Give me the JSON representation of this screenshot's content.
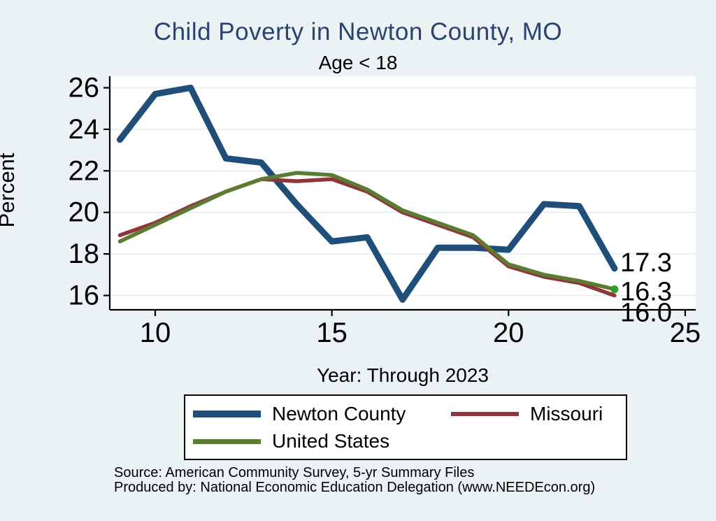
{
  "chart_data": {
    "type": "line",
    "title": "Child Poverty in Newton County, MO",
    "subtitle": "Age < 18",
    "xlabel": "Year: Through 2023",
    "ylabel": "Percent",
    "x": [
      2009,
      2010,
      2011,
      2012,
      2013,
      2014,
      2015,
      2016,
      2017,
      2018,
      2019,
      2020,
      2021,
      2022,
      2023
    ],
    "xtick_labels": [
      "10",
      "15",
      "20",
      "25"
    ],
    "xticks": [
      2010,
      2015,
      2020,
      2025
    ],
    "yticks": [
      16,
      18,
      20,
      22,
      24,
      26
    ],
    "xlim": [
      2008.7,
      2025.3
    ],
    "ylim": [
      15.3,
      26.6
    ],
    "grid": "horizontal",
    "legend_position": "bottom",
    "series": [
      {
        "name": "Newton County",
        "color": "#1f4e79",
        "values": [
          23.5,
          25.7,
          26.0,
          22.6,
          22.4,
          20.4,
          18.6,
          18.8,
          15.8,
          18.3,
          18.3,
          18.2,
          20.4,
          20.3,
          17.3
        ],
        "end_label": "17.3",
        "end_marker": false
      },
      {
        "name": "Missouri",
        "color": "#90353b",
        "values": [
          18.9,
          19.5,
          20.3,
          21.0,
          21.6,
          21.5,
          21.6,
          21.0,
          20.0,
          19.4,
          18.8,
          17.4,
          16.9,
          16.6,
          16.0
        ],
        "end_label": "16.0",
        "end_marker": false
      },
      {
        "name": "United States",
        "color": "#5c7b33",
        "values": [
          18.6,
          19.4,
          20.2,
          21.0,
          21.6,
          21.9,
          21.8,
          21.1,
          20.1,
          19.5,
          18.9,
          17.5,
          17.0,
          16.7,
          16.3
        ],
        "end_label": "16.3",
        "end_marker": true
      }
    ],
    "colors": {
      "background": "#eaf2f3",
      "plot_background": "#ffffff",
      "gridline": "#e2edf0",
      "axis": "#000000",
      "title": "#2b4270",
      "end_marker": "#2d9e2f"
    }
  },
  "footer": {
    "source": "Source: American Community Survey, 5-yr Summary Files",
    "produced_by": "Produced by: National Economic Education Delegation (www.NEEDEcon.org)"
  }
}
